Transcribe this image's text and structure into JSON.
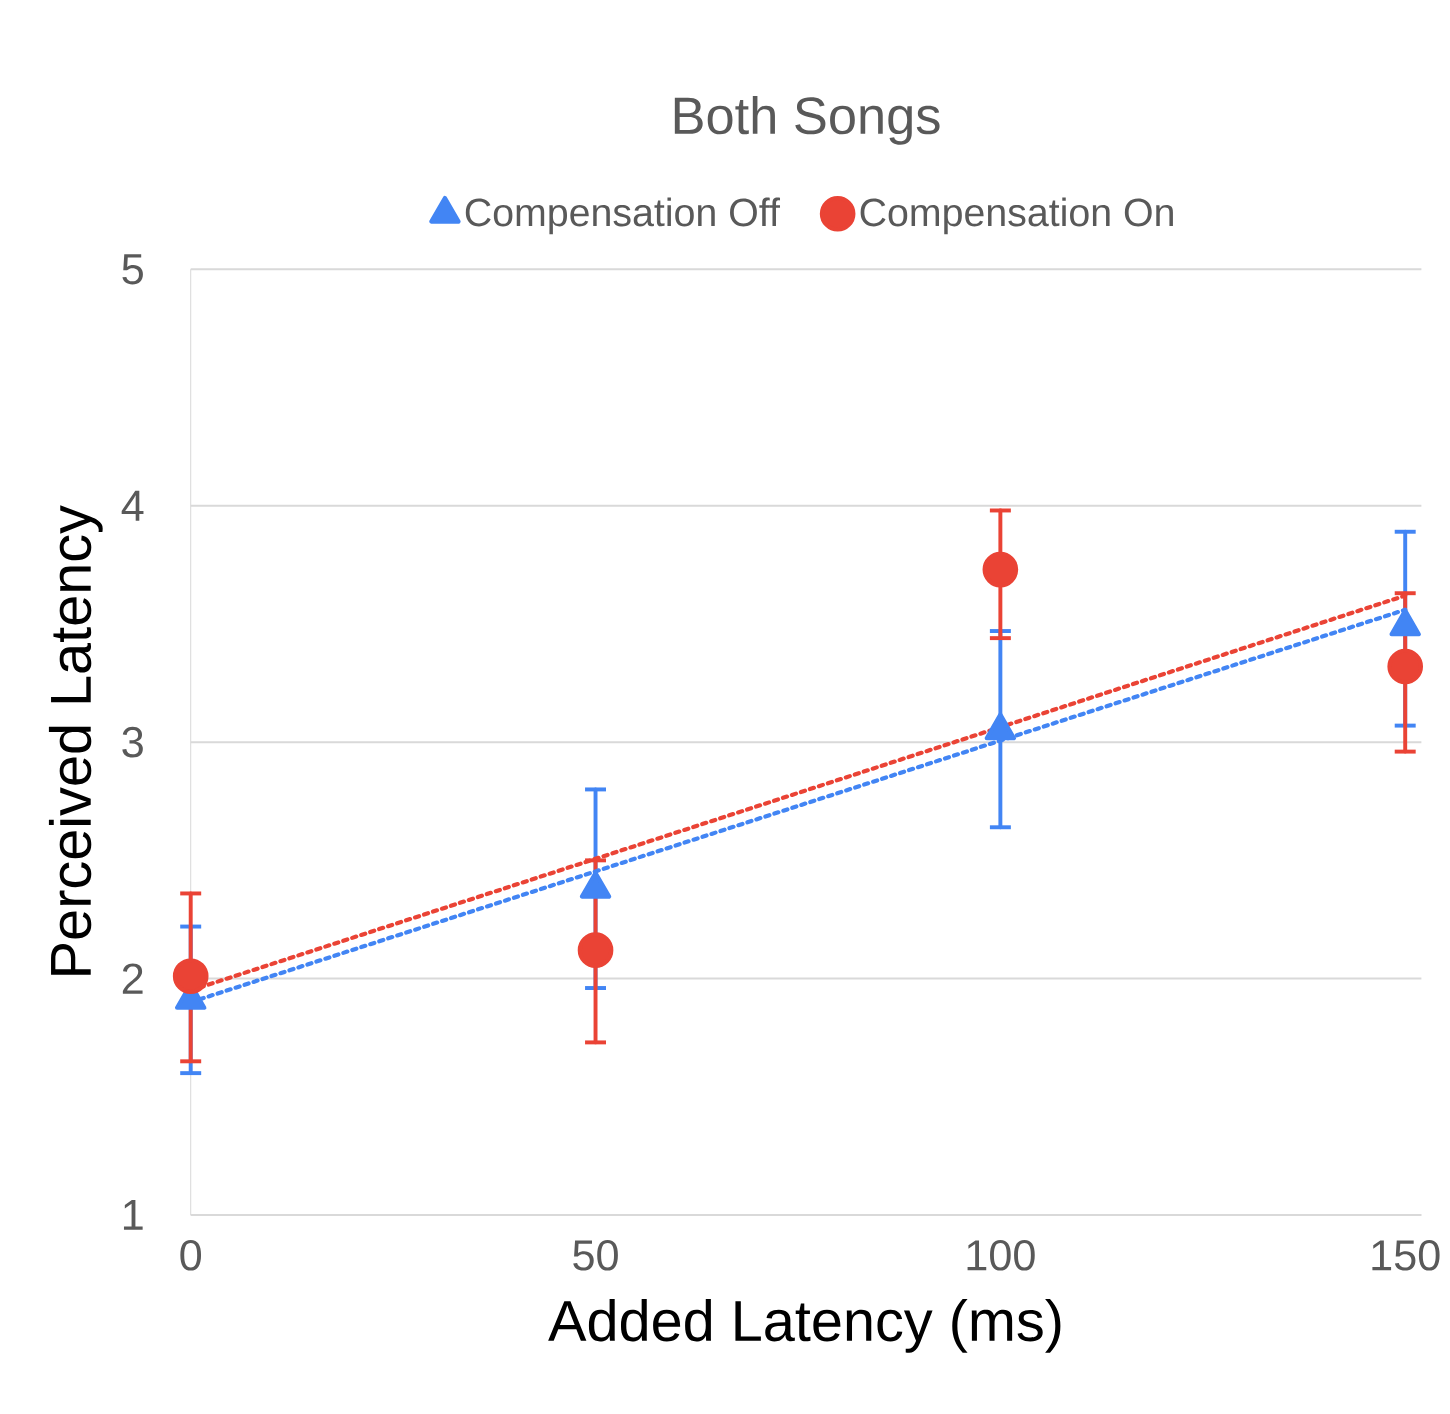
{
  "chart_data": {
    "type": "scatter",
    "title": "Both Songs",
    "xlabel": "Added Latency (ms)",
    "ylabel": "Perceived Latency",
    "xlim": [
      0,
      152
    ],
    "xticks": [
      0,
      50,
      100,
      150
    ],
    "ylim": [
      1,
      5
    ],
    "yticks": [
      1,
      2,
      3,
      4,
      5
    ],
    "grid": "y",
    "legend": "top",
    "series": [
      {
        "name": "Compensation Off",
        "color": "#4285f4",
        "marker": "triangle",
        "x": [
          0,
          50,
          100,
          150
        ],
        "values": [
          1.91,
          2.38,
          3.05,
          3.49
        ],
        "errors": [
          [
            1.6,
            2.22
          ],
          [
            1.96,
            2.8
          ],
          [
            2.64,
            3.47
          ],
          [
            3.07,
            3.89
          ]
        ]
      },
      {
        "name": "Compensation On",
        "color": "#ea4335",
        "marker": "circle",
        "x": [
          0,
          50,
          100,
          150
        ],
        "values": [
          2.01,
          2.12,
          3.73,
          3.32
        ],
        "errors": [
          [
            1.65,
            2.36
          ],
          [
            1.73,
            2.5
          ],
          [
            3.44,
            3.98
          ],
          [
            2.96,
            3.63
          ]
        ]
      },
      {
        "type": "line",
        "color": "#4285f4",
        "marker": "none",
        "line_style": "dotted",
        "x": [
          0,
          150
        ],
        "values": [
          1.9,
          3.56
        ]
      },
      {
        "type": "line",
        "color": "#ea4335",
        "marker": "none",
        "line_style": "dotted",
        "x": [
          0,
          150
        ],
        "values": [
          1.95,
          3.62
        ]
      }
    ]
  }
}
